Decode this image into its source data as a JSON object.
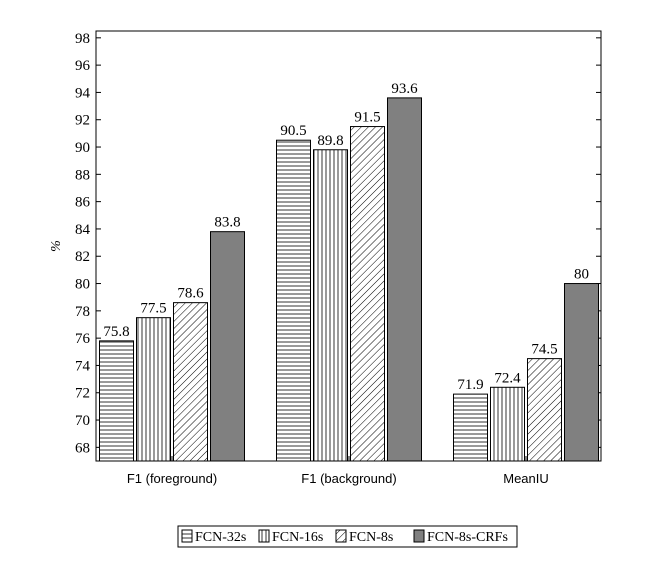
{
  "chart_data": {
    "type": "bar",
    "categories": [
      "F1 (foreground)",
      "F1 (background)",
      "MeanIU"
    ],
    "series": [
      {
        "name": "FCN-32s",
        "values": [
          75.8,
          90.5,
          71.9
        ],
        "pattern": "horizontal-lines",
        "fill": "#ffffff"
      },
      {
        "name": "FCN-16s",
        "values": [
          77.5,
          89.8,
          72.4
        ],
        "pattern": "vertical-lines",
        "fill": "#ffffff"
      },
      {
        "name": "FCN-8s",
        "values": [
          78.6,
          91.5,
          74.5
        ],
        "pattern": "diagonal-lines",
        "fill": "#ffffff"
      },
      {
        "name": "FCN-8s-CRFs",
        "values": [
          83.8,
          93.6,
          80
        ],
        "pattern": "solid",
        "fill": "#808080"
      }
    ],
    "data_labels": [
      [
        "75.8",
        "90.5",
        "71.9"
      ],
      [
        "77.5",
        "89.8",
        "72.4"
      ],
      [
        "78.6",
        "91.5",
        "74.5"
      ],
      [
        "83.8",
        "93.6",
        "80"
      ]
    ],
    "ylabel": "%",
    "xlabel": "",
    "ylim": [
      67,
      98.5
    ],
    "yticks": [
      68,
      70,
      72,
      74,
      76,
      78,
      80,
      82,
      84,
      86,
      88,
      90,
      92,
      94,
      96,
      98
    ],
    "grid": false,
    "legend_position": "bottom"
  }
}
